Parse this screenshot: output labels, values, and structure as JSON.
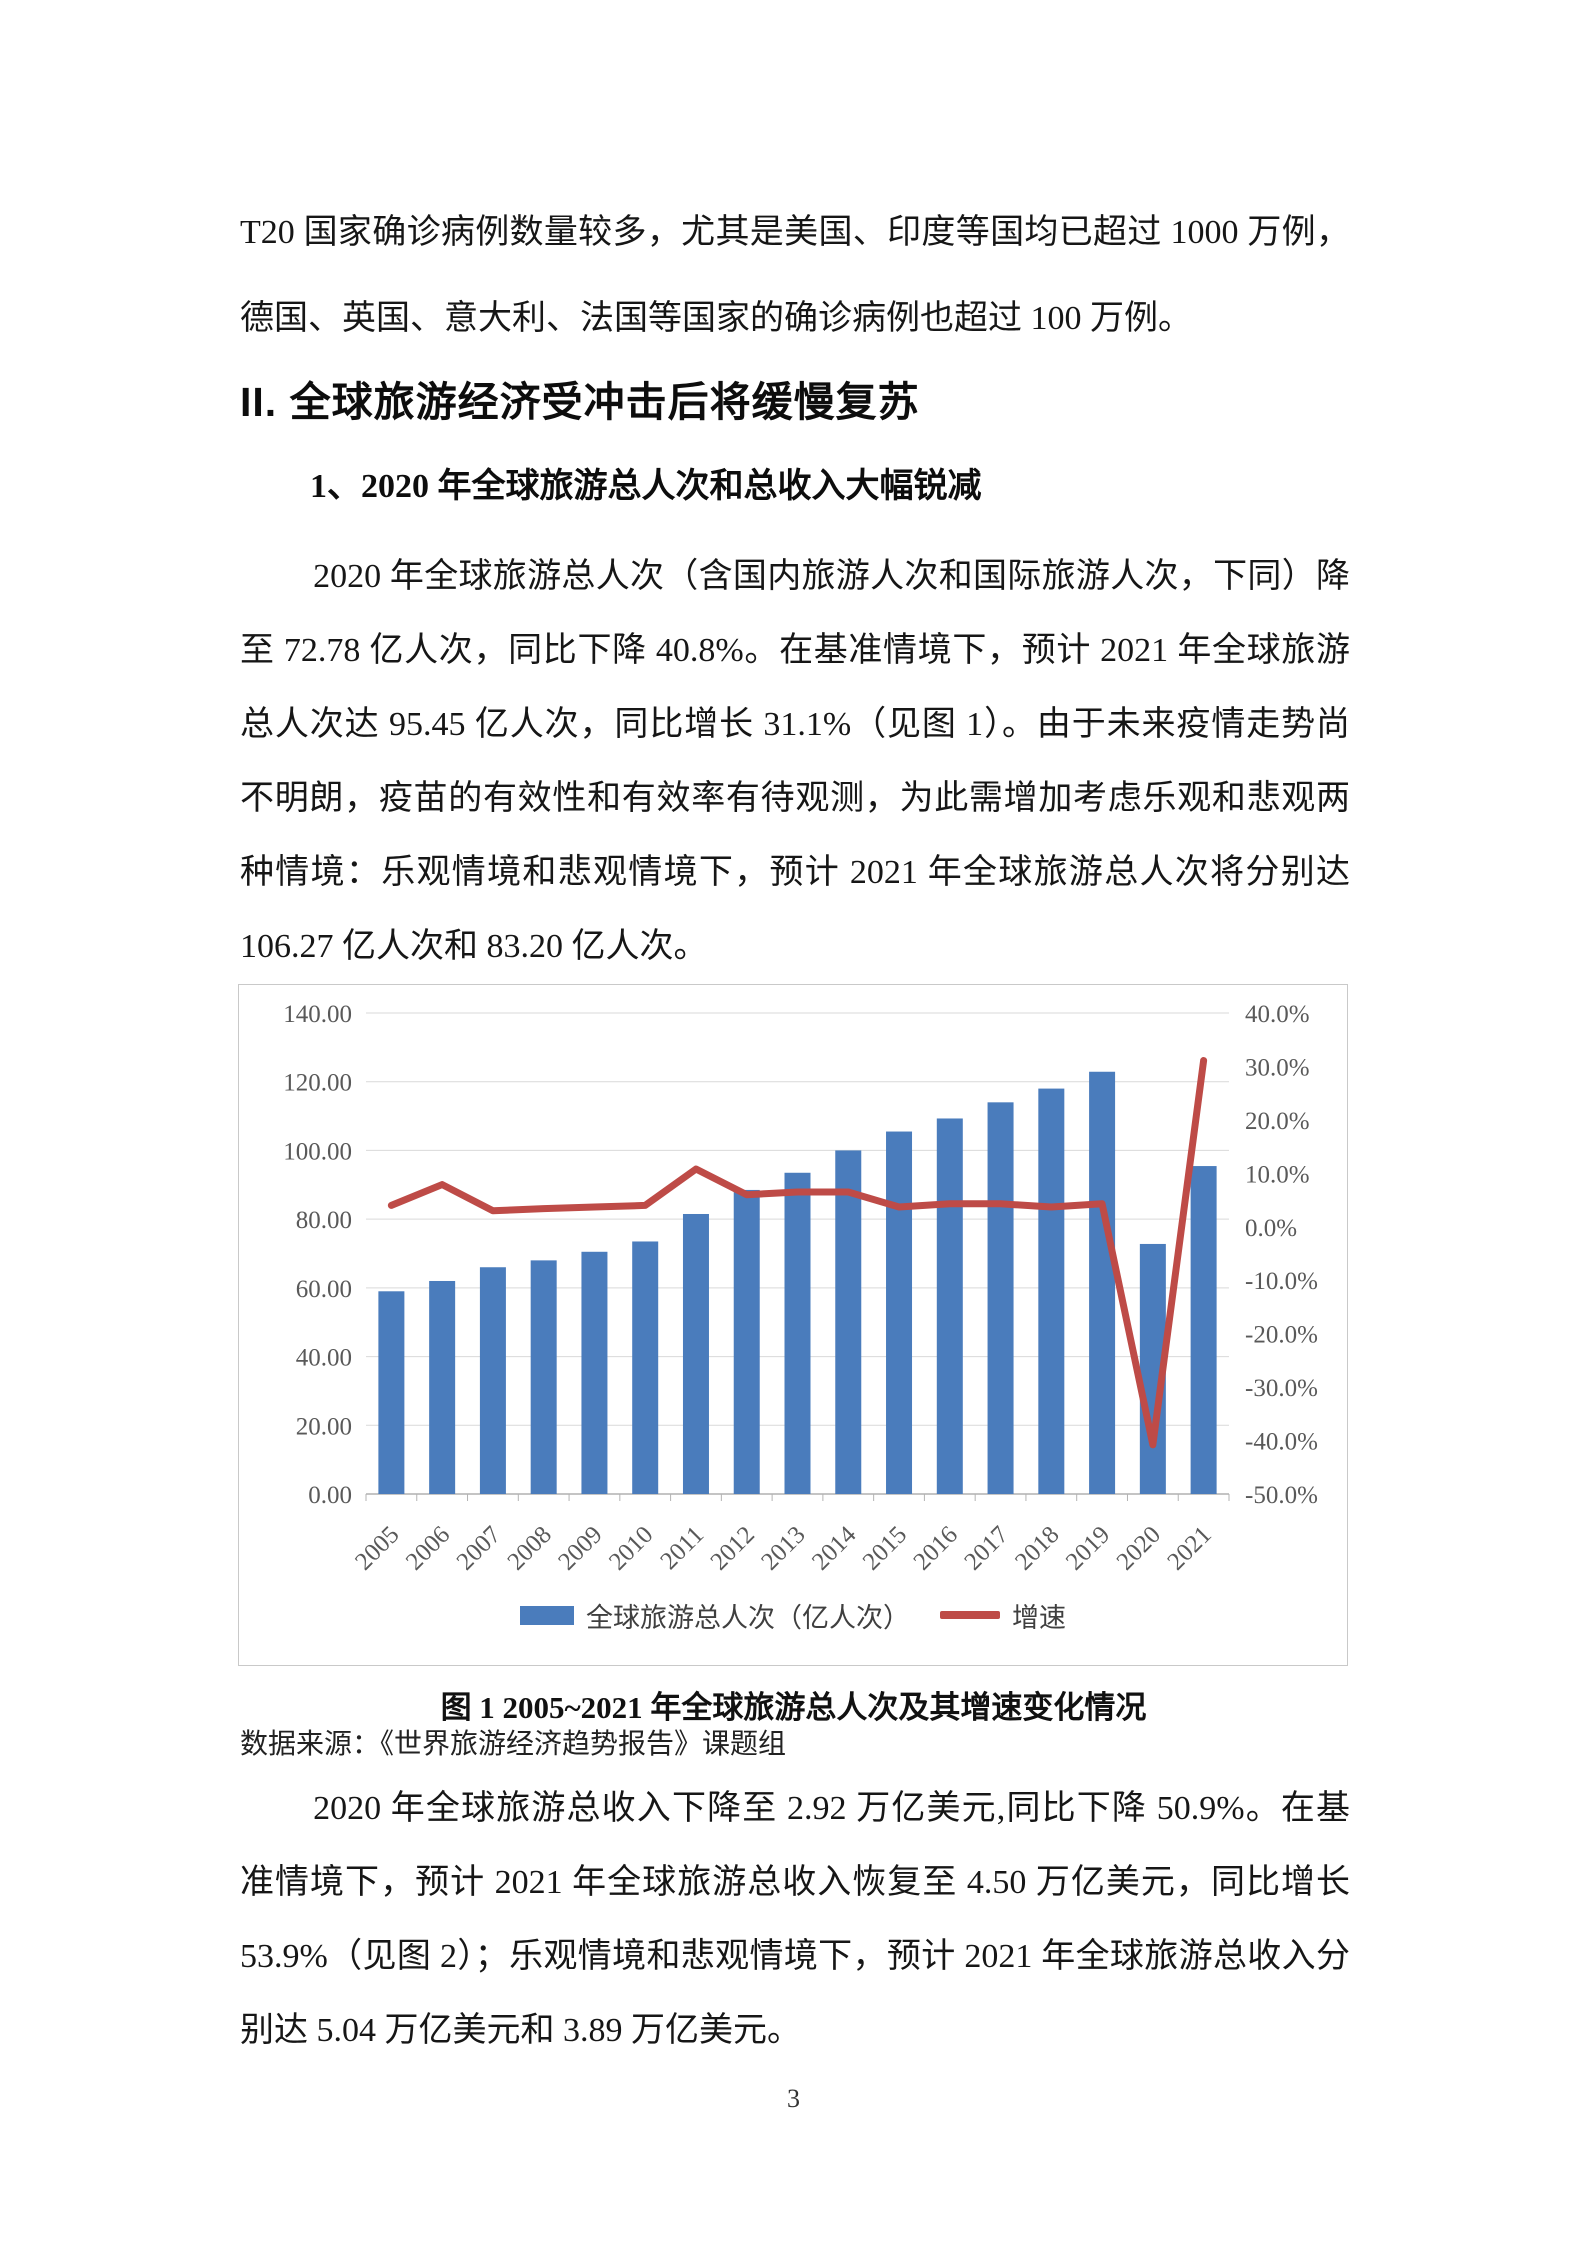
{
  "page": {
    "number": "3"
  },
  "headings": {
    "section": "II. 全球旅游经济受冲击后将缓慢复苏",
    "subsection": "1、2020 年全球旅游总人次和总收入大幅锐减"
  },
  "paragraphs": {
    "covid_cases": "T20 国家确诊病例数量较多，尤其是美国、印度等国均已超过 1000 万例，德国、英国、意大利、法国等国家的确诊病例也超过 100 万例。",
    "tourist_numbers": "2020 年全球旅游总人次（含国内旅游人次和国际旅游人次，下同）降至 72.78 亿人次，同比下降 40.8%。在基准情境下，预计 2021 年全球旅游总人次达 95.45 亿人次，同比增长 31.1%（见图 1）。由于未来疫情走势尚不明朗，疫苗的有效性和有效率有待观测，为此需增加考虑乐观和悲观两种情境：乐观情境和悲观情境下，预计 2021 年全球旅游总人次将分别达 106.27 亿人次和 83.20 亿人次。",
    "revenue": "2020 年全球旅游总收入下降至 2.92 万亿美元,同比下降 50.9%。在基准情境下，预计 2021 年全球旅游总收入恢复至 4.50 万亿美元，同比增长 53.9%（见图 2）；乐观情境和悲观情境下，预计 2021 年全球旅游总收入分别达 5.04 万亿美元和 3.89 万亿美元。"
  },
  "figure": {
    "caption": "图 1 2005~2021 年全球旅游总人次及其增速变化情况",
    "source": "数据来源：《世界旅游经济趋势报告》课题组"
  },
  "chart_data": {
    "type": "bar",
    "subtype": "bar-line-combo",
    "title": "",
    "categories": [
      "2005",
      "2006",
      "2007",
      "2008",
      "2009",
      "2010",
      "2011",
      "2012",
      "2013",
      "2014",
      "2015",
      "2016",
      "2017",
      "2018",
      "2019",
      "2020",
      "2021"
    ],
    "series": [
      {
        "name": "全球旅游总人次（亿人次）",
        "type": "bar",
        "axis": "left",
        "color": "#4A7CBC",
        "values": [
          59.0,
          62.0,
          66.0,
          68.0,
          70.5,
          73.5,
          81.5,
          88.5,
          93.5,
          100.0,
          105.5,
          109.3,
          114.0,
          118.0,
          122.9,
          72.78,
          95.45
        ]
      },
      {
        "name": "增速",
        "type": "line",
        "axis": "right",
        "color": "#BE4B47",
        "values": [
          4.0,
          7.9,
          3.0,
          3.4,
          3.7,
          4.0,
          10.8,
          6.0,
          6.5,
          6.5,
          3.7,
          4.3,
          4.3,
          3.7,
          4.3,
          -40.8,
          31.1
        ]
      }
    ],
    "left_axis": {
      "min": 0,
      "max": 140,
      "step": 20,
      "decimals": 2,
      "suffix": ""
    },
    "right_axis": {
      "min": -50,
      "max": 40,
      "step": 10,
      "decimals": 1,
      "suffix": "%"
    },
    "grid": true,
    "legend_position": "bottom",
    "colors": {
      "grid": "#d9d9d9",
      "axis_line": "#b0b0b0",
      "tick": "#b3b3b3",
      "axis_text": "#595959"
    }
  }
}
